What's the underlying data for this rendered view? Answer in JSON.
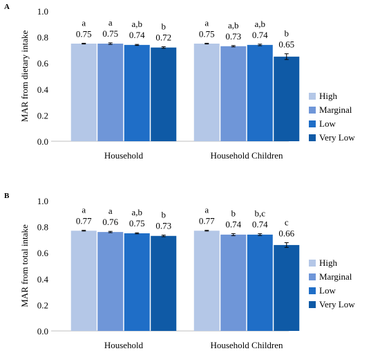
{
  "chart_data": [
    {
      "panel_label": "A",
      "type": "bar",
      "ylabel": "MAR from dietary intake",
      "ylim": [
        0,
        1.0
      ],
      "yticks": [
        "0.0",
        "0.2",
        "0.4",
        "0.6",
        "0.8",
        "1.0"
      ],
      "categories": [
        "Household",
        "Household Children"
      ],
      "series": [
        {
          "name": "High",
          "color": "#b4c7e7",
          "values": [
            0.75,
            0.75
          ],
          "error": [
            0.003,
            0.003
          ],
          "labels": [
            "0.75",
            "0.75"
          ],
          "letters": [
            "a",
            "a"
          ]
        },
        {
          "name": "Marginal",
          "color": "#6f96d8",
          "values": [
            0.75,
            0.73
          ],
          "error": [
            0.006,
            0.005
          ],
          "labels": [
            "0.75",
            "0.73"
          ],
          "letters": [
            "a",
            "a,b"
          ]
        },
        {
          "name": "Low",
          "color": "#1f6ec7",
          "values": [
            0.74,
            0.74
          ],
          "error": [
            0.004,
            0.006
          ],
          "labels": [
            "0.74",
            "0.74"
          ],
          "letters": [
            "a,b",
            "a,b"
          ]
        },
        {
          "name": "Very Low",
          "color": "#0f5aa6",
          "values": [
            0.72,
            0.65
          ],
          "error": [
            0.006,
            0.022
          ],
          "labels": [
            "0.72",
            "0.65"
          ],
          "letters": [
            "b",
            "b"
          ]
        }
      ],
      "legend": "right"
    },
    {
      "panel_label": "B",
      "type": "bar",
      "ylabel": "MAR from total intake",
      "ylim": [
        0,
        1.0
      ],
      "yticks": [
        "0.0",
        "0.2",
        "0.4",
        "0.6",
        "0.8",
        "1.0"
      ],
      "categories": [
        "Household",
        "Household Children"
      ],
      "series": [
        {
          "name": "High",
          "color": "#b4c7e7",
          "values": [
            0.77,
            0.77
          ],
          "error": [
            0.003,
            0.003
          ],
          "labels": [
            "0.77",
            "0.77"
          ],
          "letters": [
            "a",
            "a"
          ]
        },
        {
          "name": "Marginal",
          "color": "#6f96d8",
          "values": [
            0.76,
            0.74
          ],
          "error": [
            0.005,
            0.008
          ],
          "labels": [
            "0.76",
            "0.74"
          ],
          "letters": [
            "a",
            "b"
          ]
        },
        {
          "name": "Low",
          "color": "#1f6ec7",
          "values": [
            0.75,
            0.74
          ],
          "error": [
            0.004,
            0.007
          ],
          "labels": [
            "0.75",
            "0.74"
          ],
          "letters": [
            "a,b",
            "b,c"
          ]
        },
        {
          "name": "Very Low",
          "color": "#0f5aa6",
          "values": [
            0.73,
            0.66
          ],
          "error": [
            0.006,
            0.018
          ],
          "labels": [
            "0.73",
            "0.66"
          ],
          "letters": [
            "b",
            "c"
          ]
        }
      ],
      "legend": "right"
    }
  ]
}
